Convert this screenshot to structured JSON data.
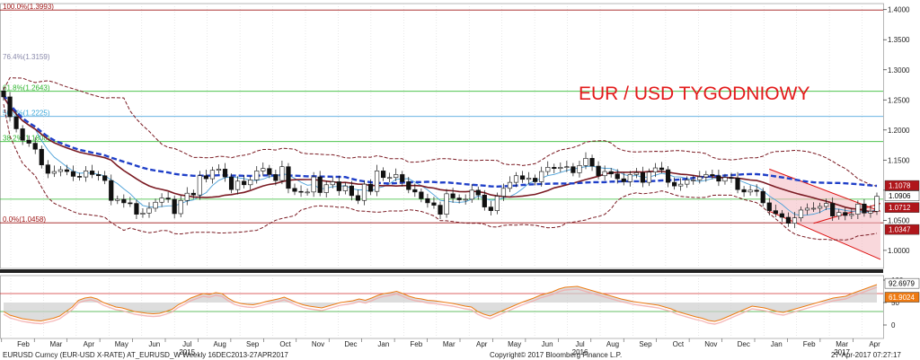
{
  "chart_data": [
    {
      "type": "candlestick",
      "title": "EUR / USD TYGODNIOWY",
      "ylim": [
        0.97,
        1.41
      ],
      "y_ticks": [
        "1.4000",
        "1.3500",
        "1.3000",
        "1.2500",
        "1.2000",
        "1.1500",
        "1.1000",
        "1.0500",
        "1.0000"
      ],
      "y_tick_values": [
        1.4,
        1.35,
        1.3,
        1.25,
        1.2,
        1.15,
        1.1,
        1.05,
        1.0
      ],
      "x_months": [
        "Feb",
        "Mar",
        "Apr",
        "May",
        "Jun",
        "Jul",
        "Aug",
        "Sep",
        "Oct",
        "Nov",
        "Dec",
        "Jan",
        "Feb",
        "Mar",
        "Apr",
        "May",
        "Jun",
        "Jul",
        "Aug",
        "Sep",
        "Oct",
        "Nov",
        "Dec",
        "Jan",
        "Feb",
        "Mar",
        "Apr"
      ],
      "x_years": [
        {
          "label": "2015",
          "month_index": 5
        },
        {
          "label": "2016",
          "month_index": 17
        },
        {
          "label": "2017",
          "month_index": 25
        }
      ],
      "fibonacci": [
        {
          "label": "100.0%(1.3993)",
          "value": 1.3993,
          "color": "#a01818"
        },
        {
          "label": "76.4%(1.3159)",
          "value": 1.3159,
          "color": "#8888aa"
        },
        {
          "label": "61.8%(1.2643)",
          "value": 1.2643,
          "color": "#2fb52f"
        },
        {
          "label": "50.0%(1.2225)",
          "value": 1.2225,
          "color": "#3aa6d8"
        },
        {
          "label": "38.2%(1.1808)",
          "value": 1.1808,
          "color": "#2fb52f"
        },
        {
          "label": "0.0%(1.0458)",
          "value": 1.0458,
          "color": "#a01818"
        }
      ],
      "horizontal_lines": [
        {
          "value": 1.3993,
          "color": "#a01818"
        },
        {
          "value": 1.2643,
          "color": "#33bb33"
        },
        {
          "value": 1.2225,
          "color": "#55aadd"
        },
        {
          "value": 1.1808,
          "color": "#33bb33"
        },
        {
          "value": 1.085,
          "color": "#33bb33"
        },
        {
          "value": 1.0458,
          "color": "#a01818"
        }
      ],
      "price_tags": [
        {
          "label": "1.1078",
          "value": 1.1078,
          "bg": "#b0161b"
        },
        {
          "label": "1.0906",
          "value": 1.0906,
          "bg": "#ffffff"
        },
        {
          "label": "1.0712",
          "value": 1.0712,
          "bg": "#b0161b"
        },
        {
          "label": "1.0347",
          "value": 1.0347,
          "bg": "#b0161b"
        }
      ],
      "closes": [
        1.255,
        1.222,
        1.202,
        1.183,
        1.178,
        1.168,
        1.142,
        1.128,
        1.131,
        1.134,
        1.131,
        1.123,
        1.122,
        1.132,
        1.126,
        1.124,
        1.116,
        1.083,
        1.085,
        1.079,
        1.078,
        1.06,
        1.062,
        1.07,
        1.08,
        1.087,
        1.085,
        1.061,
        1.083,
        1.095,
        1.092,
        1.124,
        1.119,
        1.133,
        1.135,
        1.122,
        1.101,
        1.115,
        1.109,
        1.117,
        1.132,
        1.136,
        1.126,
        1.116,
        1.139,
        1.103,
        1.098,
        1.097,
        1.097,
        1.122,
        1.096,
        1.109,
        1.114,
        1.099,
        1.107,
        1.091,
        1.083,
        1.11,
        1.098,
        1.132,
        1.121,
        1.121,
        1.126,
        1.114,
        1.101,
        1.097,
        1.086,
        1.079,
        1.075,
        1.06,
        1.094,
        1.087,
        1.084,
        1.085,
        1.1,
        1.092,
        1.072,
        1.066,
        1.09,
        1.103,
        1.113,
        1.124,
        1.118,
        1.12,
        1.114,
        1.131,
        1.138,
        1.136,
        1.138,
        1.139,
        1.129,
        1.141,
        1.153,
        1.14,
        1.124,
        1.131,
        1.127,
        1.119,
        1.114,
        1.126,
        1.129,
        1.113,
        1.13,
        1.137,
        1.134,
        1.113,
        1.107,
        1.11,
        1.117,
        1.117,
        1.122,
        1.126,
        1.124,
        1.115,
        1.121,
        1.12,
        1.101,
        1.097,
        1.1,
        1.098,
        1.079,
        1.066,
        1.061,
        1.055,
        1.045,
        1.054,
        1.067,
        1.07,
        1.07,
        1.073,
        1.078,
        1.057,
        1.063,
        1.058,
        1.06,
        1.077,
        1.062,
        1.065,
        1.09
      ]
    },
    {
      "type": "area",
      "title": "",
      "ylim": [
        -30,
        110
      ],
      "y_ticks": [
        "100",
        "50",
        "0"
      ],
      "y_tick_values": [
        100,
        50,
        0
      ],
      "price_tags": [
        {
          "label": "92.6979",
          "value": 92.6979,
          "bg": "#ffffff"
        },
        {
          "label": "61.9024",
          "value": 61.9024,
          "bg": "#ee7a12"
        }
      ],
      "levels": [
        70,
        30
      ],
      "series": [
        {
          "values": [
            30,
            22,
            18,
            14,
            12,
            10,
            9,
            12,
            15,
            20,
            30,
            40,
            55,
            60,
            62,
            58,
            50,
            45,
            40,
            38,
            34,
            30,
            28,
            26,
            25,
            26,
            30,
            35,
            45,
            52,
            60,
            65,
            70,
            68,
            72,
            70,
            60,
            52,
            48,
            46,
            45,
            48,
            52,
            55,
            58,
            62,
            56,
            50,
            45,
            42,
            40,
            38,
            42,
            46,
            50,
            52,
            54,
            58,
            55,
            60,
            66,
            70,
            72,
            75,
            70,
            64,
            60,
            58,
            55,
            54,
            52,
            50,
            48,
            45,
            42,
            40,
            30,
            24,
            20,
            26,
            32,
            38,
            44,
            50,
            55,
            60,
            66,
            70,
            74,
            80,
            84,
            85,
            86,
            82,
            78,
            74,
            70,
            66,
            62,
            58,
            55,
            52,
            50,
            48,
            46,
            44,
            40,
            36,
            30,
            26,
            22,
            18,
            15,
            10,
            8,
            12,
            18,
            24,
            30,
            36,
            42,
            40,
            38,
            34,
            30,
            28,
            32,
            36,
            40,
            44,
            48,
            52,
            56,
            60,
            62,
            64,
            70,
            75,
            80,
            85,
            90
          ]
        }
      ]
    }
  ],
  "footer": {
    "left": "EURUSD Curncy (EUR-USD X-RATE) AT_EURUSD_W  Weekly 16DEC2013-27APR2017",
    "center": "Copyright© 2017 Bloomberg Finance L.P.",
    "right": "27-Apr-2017 07:27:17"
  }
}
